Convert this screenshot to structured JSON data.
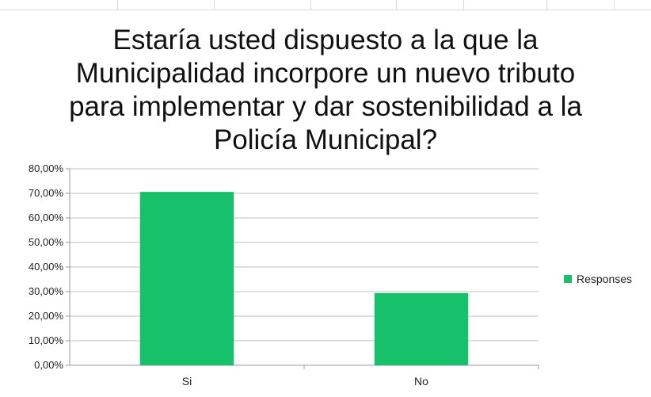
{
  "chart_data": {
    "type": "bar",
    "title_lines": [
      "Estaría usted dispuesto a la que la",
      "Municipalidad incorpore un nuevo tributo",
      "para implementar y dar sostenibilidad a la",
      "Policía Municipal?"
    ],
    "categories": [
      "Si",
      "No"
    ],
    "series": [
      {
        "name": "Responses",
        "values": [
          70.6,
          29.4
        ],
        "color": "#17c06a"
      }
    ],
    "ylim": [
      0,
      80
    ],
    "yticks": [
      0,
      10,
      20,
      30,
      40,
      50,
      60,
      70,
      80
    ],
    "ytick_labels": [
      "0,00%",
      "10,00%",
      "20,00%",
      "30,00%",
      "40,00%",
      "50,00%",
      "60,00%",
      "70,00%",
      "80,00%"
    ],
    "grid": true,
    "legend_position": "right"
  }
}
